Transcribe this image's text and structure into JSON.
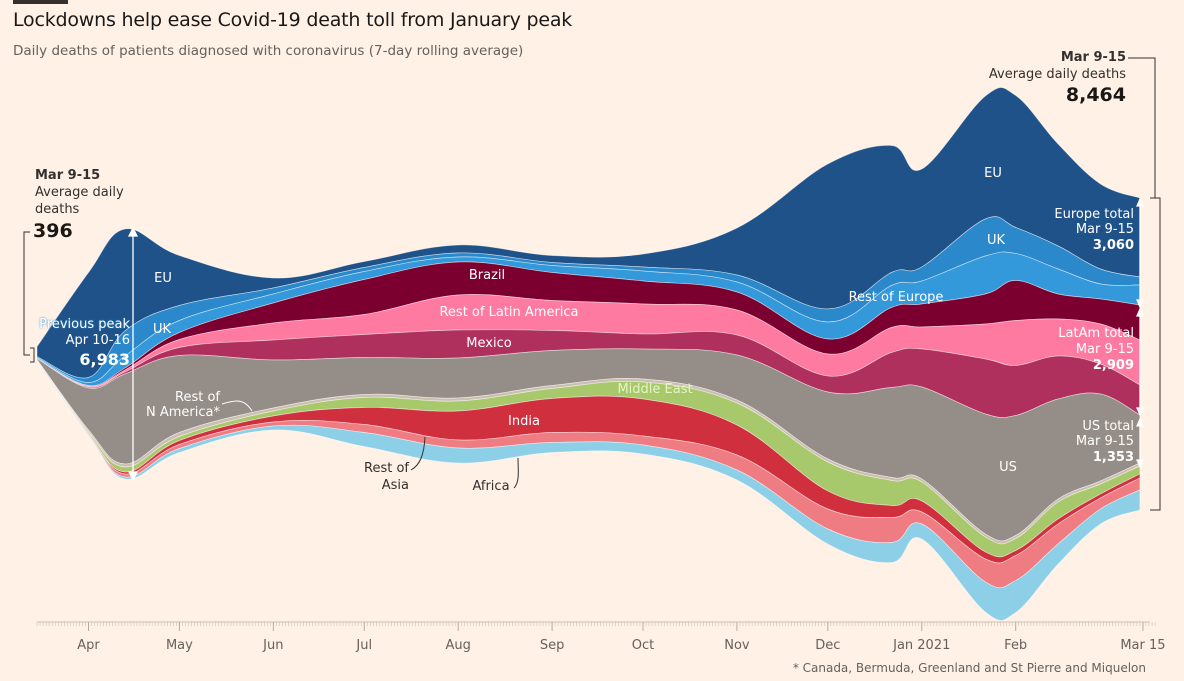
{
  "header": {
    "title": "Lockdowns help ease Covid-19 death toll from January peak",
    "subtitle": "Daily deaths of patients diagnosed with coronavirus (7-day rolling average)"
  },
  "chart_data": {
    "type": "area",
    "subtype": "streamgraph",
    "title": "Lockdowns help ease Covid-19 death toll from January peak",
    "subtitle": "Daily deaths of patients diagnosed with coronavirus (7-day rolling average)",
    "xlabel": "",
    "ylabel": "Daily deaths",
    "x": [
      "2020-03-15",
      "2020-04-01",
      "2020-04-13",
      "2020-05-01",
      "2020-06-01",
      "2020-07-01",
      "2020-08-01",
      "2020-09-01",
      "2020-10-01",
      "2020-11-01",
      "2020-12-01",
      "2020-12-22",
      "2021-01-01",
      "2021-01-22",
      "2021-02-01",
      "2021-02-15",
      "2021-03-01",
      "2021-03-14"
    ],
    "series": [
      {
        "name": "EU",
        "color": "#1f5289",
        "values": [
          270,
          2835,
          2754,
          1350,
          270,
          162,
          216,
          189,
          351,
          1269,
          3915,
          3429,
          2646,
          3321,
          3564,
          2754,
          2295,
          2133
        ]
      },
      {
        "name": "UK",
        "color": "#2a88cb",
        "values": [
          27,
          135,
          675,
          405,
          162,
          108,
          108,
          81,
          108,
          189,
          351,
          351,
          378,
          999,
          702,
          621,
          405,
          216
        ]
      },
      {
        "name": "Rest of Europe",
        "color": "#3399da",
        "values": [
          27,
          81,
          324,
          324,
          243,
          216,
          135,
          189,
          270,
          270,
          459,
          594,
          621,
          1026,
          729,
          675,
          405,
          540
        ]
      },
      {
        "name": "Brazil",
        "color": "#7b0030",
        "values": [
          0,
          14,
          54,
          189,
          540,
          945,
          891,
          756,
          621,
          486,
          405,
          540,
          621,
          810,
          1080,
          675,
          675,
          945
        ]
      },
      {
        "name": "Rest of Latin America",
        "color": "#ff7aa1",
        "values": [
          0,
          27,
          54,
          216,
          459,
          540,
          945,
          810,
          810,
          675,
          594,
          675,
          594,
          945,
          1215,
          999,
          1080,
          1215
        ]
      },
      {
        "name": "Mexico",
        "color": "#b0305d",
        "values": [
          0,
          27,
          54,
          216,
          540,
          621,
          756,
          540,
          405,
          540,
          432,
          945,
          1026,
          1485,
          1350,
          1161,
          810,
          810
        ]
      },
      {
        "name": "US",
        "color": "#958d87",
        "values": [
          27,
          1134,
          2430,
          2079,
          1296,
          999,
          1080,
          945,
          810,
          1215,
          1809,
          2430,
          2484,
          3240,
          3240,
          2700,
          2349,
          1296
        ]
      },
      {
        "name": "Rest of N America*",
        "color": "#cbbfb4",
        "values": [
          0,
          54,
          81,
          108,
          81,
          81,
          81,
          81,
          81,
          81,
          81,
          81,
          81,
          81,
          81,
          81,
          81,
          81
        ]
      },
      {
        "name": "Middle East",
        "color": "#a8c96b",
        "values": [
          20,
          41,
          135,
          108,
          135,
          270,
          270,
          270,
          459,
          594,
          783,
          675,
          513,
          405,
          324,
          459,
          270,
          216
        ]
      },
      {
        "name": "India",
        "color": "#d02f3d",
        "values": [
          0,
          14,
          54,
          108,
          162,
          459,
          783,
          918,
          999,
          810,
          486,
          324,
          297,
          189,
          135,
          135,
          108,
          108
        ]
      },
      {
        "name": "Rest of Asia",
        "color": "#f07c83",
        "values": [
          15,
          27,
          81,
          108,
          108,
          216,
          216,
          270,
          243,
          405,
          540,
          675,
          324,
          621,
          675,
          540,
          297,
          324
        ]
      },
      {
        "name": "Africa",
        "color": "#8dcfe6",
        "values": [
          10,
          14,
          54,
          108,
          108,
          378,
          405,
          270,
          243,
          270,
          405,
          540,
          405,
          810,
          864,
          540,
          405,
          540
        ]
      }
    ],
    "x_ticks": [
      {
        "date": "2020-04-01",
        "label": "Apr"
      },
      {
        "date": "2020-05-01",
        "label": "May"
      },
      {
        "date": "2020-06-01",
        "label": "Jun"
      },
      {
        "date": "2020-07-01",
        "label": "Jul"
      },
      {
        "date": "2020-08-01",
        "label": "Aug"
      },
      {
        "date": "2020-09-01",
        "label": "Sep"
      },
      {
        "date": "2020-10-01",
        "label": "Oct"
      },
      {
        "date": "2020-11-01",
        "label": "Nov"
      },
      {
        "date": "2020-12-01",
        "label": "Dec"
      },
      {
        "date": "2021-01-01",
        "label": "Jan 2021"
      },
      {
        "date": "2021-02-01",
        "label": "Feb"
      },
      {
        "date": "2021-03-15",
        "label": "Mar 15"
      }
    ],
    "grid": false,
    "legend": "inline labels",
    "annotations": {
      "start": {
        "period": "Mar 9-15",
        "line1": "Average daily",
        "line2": "deaths",
        "value": "396"
      },
      "end": {
        "period": "Mar 9-15",
        "line1": "Average daily deaths",
        "value": "8,464"
      },
      "previous_peak": {
        "line1": "Previous peak",
        "line2": "Apr 10-16",
        "value": "6,983"
      },
      "europe_total": {
        "line1": "Europe total",
        "line2": "Mar 9-15",
        "value": "3,060"
      },
      "latam_total": {
        "line1": "LatAm total",
        "line2": "Mar 9-15",
        "value": "2,909"
      },
      "us_total": {
        "line1": "US total",
        "line2": "Mar 9-15",
        "value": "1,353"
      },
      "labels": {
        "eu": "EU",
        "uk": "UK",
        "rest_europe": "Rest of Europe",
        "brazil": "Brazil",
        "rest_latam": "Rest of Latin America",
        "mexico": "Mexico",
        "us": "US",
        "rest_n_america_1": "Rest of",
        "rest_n_america_2": "N America*",
        "middle_east": "Middle East",
        "india": "India",
        "rest_asia_1": "Rest of",
        "rest_asia_2": "Asia",
        "africa": "Africa"
      }
    },
    "footnote": "* Canada, Bermuda, Greenland and St Pierre and Miquelon"
  }
}
